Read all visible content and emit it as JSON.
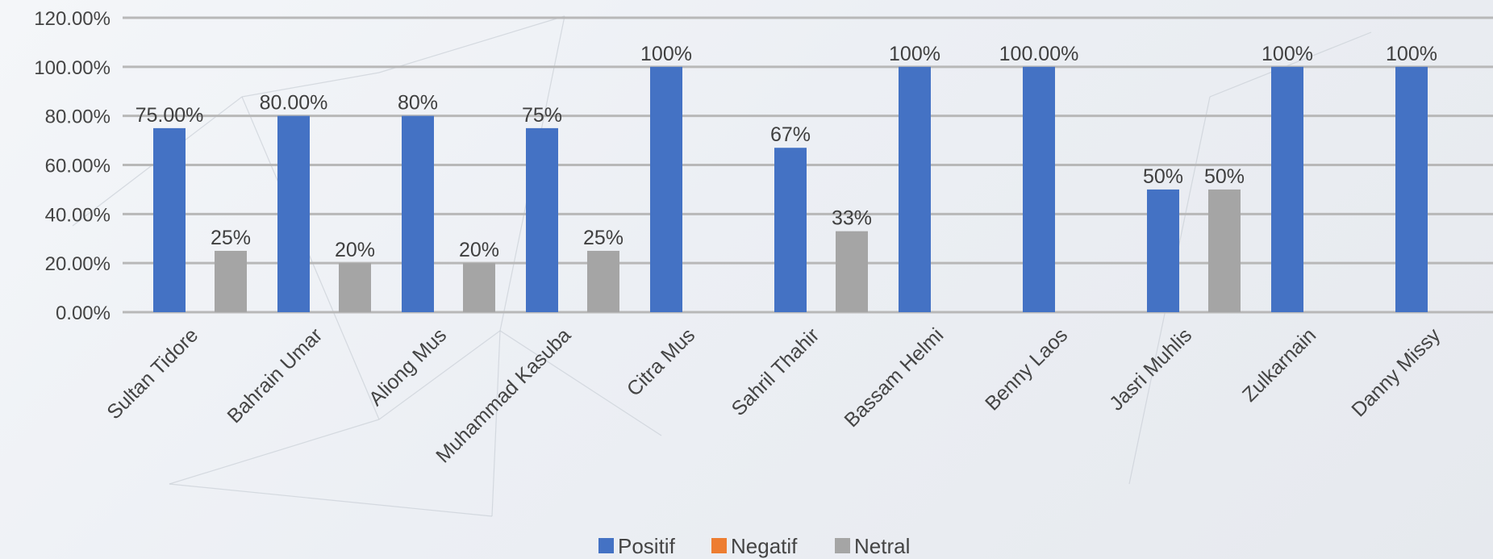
{
  "chart_data": {
    "type": "bar",
    "categories": [
      "Sultan Tidore",
      "Bahrain Umar",
      "Aliong Mus",
      "Muhammad Kasuba",
      "Citra Mus",
      "Sahril Thahir",
      "Bassam Helmi",
      "Benny Laos",
      "Jasri Muhlis",
      "Zulkarnain",
      "Danny Missy"
    ],
    "series": [
      {
        "name": "Positif",
        "color": "#4472c4",
        "values": [
          75,
          80,
          80,
          75,
          100,
          67,
          100,
          100,
          50,
          100,
          100
        ],
        "labels": [
          "75.00%",
          "80.00%",
          "80%",
          "75%",
          "100%",
          "67%",
          "100%",
          "100.00%",
          "50%",
          "100%",
          "100%"
        ]
      },
      {
        "name": "Negatif",
        "color": "#ed7d31",
        "values": [
          0,
          0,
          0,
          0,
          0,
          0,
          0,
          0,
          0,
          0,
          0
        ],
        "labels": [
          "",
          "",
          "",
          "",
          "",
          "",
          "",
          "",
          "",
          "",
          ""
        ]
      },
      {
        "name": "Netral",
        "color": "#a5a5a5",
        "values": [
          25,
          20,
          20,
          25,
          0,
          33,
          0,
          0,
          50,
          0,
          0
        ],
        "labels": [
          "25%",
          "20%",
          "20%",
          "25%",
          "",
          "33%",
          "",
          "",
          "50%",
          "",
          ""
        ]
      }
    ],
    "yticks": [
      "0.00%",
      "20.00%",
      "40.00%",
      "60.00%",
      "80.00%",
      "100.00%",
      "120.00%"
    ],
    "ylim": [
      0,
      120
    ],
    "title": "",
    "xlabel": "",
    "ylabel": "",
    "grid": true,
    "legend_position": "bottom-center"
  }
}
